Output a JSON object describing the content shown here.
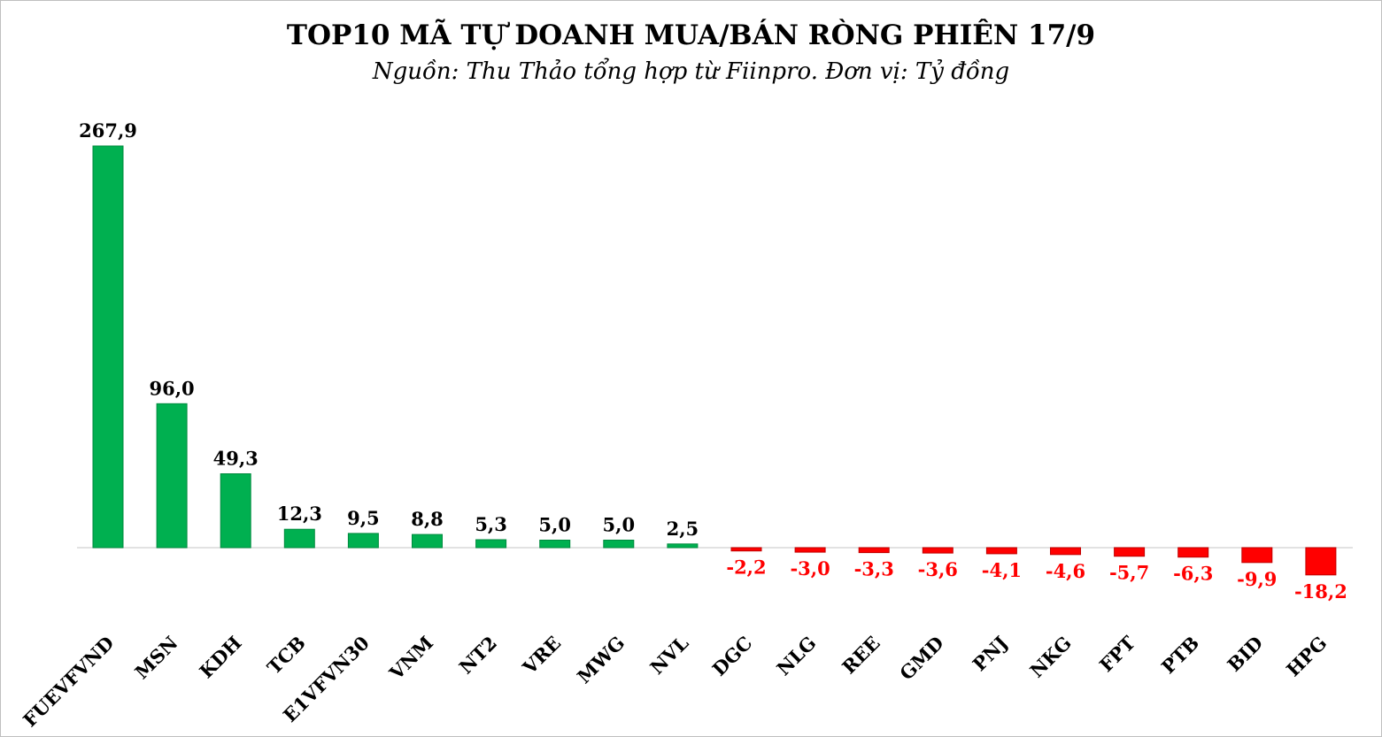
{
  "chart_data": {
    "type": "bar",
    "title": "TOP10 MÃ TỰ DOANH MUA/BÁN RÒNG PHIÊN 17/9",
    "subtitle": "Nguồn: Thu Thảo tổng hợp từ Fiinpro. Đơn vị: Tỷ đồng",
    "categories": [
      "FUEVFVND",
      "MSN",
      "KDH",
      "TCB",
      "E1VFVN30",
      "VNM",
      "NT2",
      "VRE",
      "MWG",
      "NVL",
      "DGC",
      "NLG",
      "REE",
      "GMD",
      "PNJ",
      "NKG",
      "FPT",
      "PTB",
      "BID",
      "HPG"
    ],
    "values": [
      267.9,
      96.0,
      49.3,
      12.3,
      9.5,
      8.8,
      5.3,
      5.0,
      5.0,
      2.5,
      -2.2,
      -3.0,
      -3.3,
      -3.6,
      -4.1,
      -4.6,
      -5.7,
      -6.3,
      -9.9,
      -18.2
    ],
    "labels": [
      "267,9",
      "96,0",
      "49,3",
      "12,3",
      "9,5",
      "8,8",
      "5,3",
      "5,0",
      "5,0",
      "2,5",
      "-2,2",
      "-3,0",
      "-3,3",
      "-3,6",
      "-4,1",
      "-4,6",
      "-5,7",
      "-6,3",
      "-9,9",
      "-18,2"
    ],
    "colors": {
      "positive": "#00b050",
      "negative": "#ff0000",
      "positive_label": "#000000",
      "negative_label": "#ff0000"
    },
    "grid": false,
    "legend": "none"
  }
}
